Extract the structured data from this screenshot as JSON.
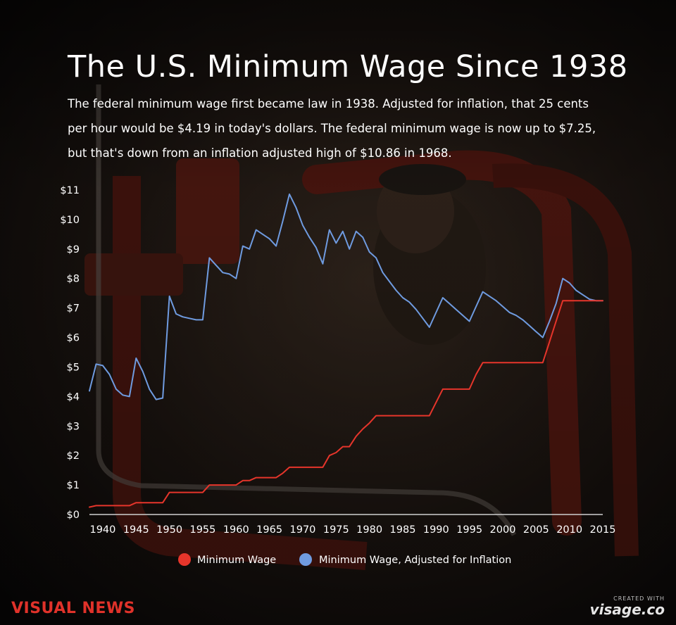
{
  "header": {
    "title": "The U.S. Minimum Wage Since 1938",
    "subtitle": "The federal minimum wage first became law in 1938. Adjusted for inflation, that 25 cents per hour would be $4.19 in today's dollars. The federal minimum wage is now up to $7.25, but that's down from an inflation adjusted high of $10.86 in 1968."
  },
  "footer": {
    "brand": "VISUAL NEWS",
    "credit_small": "CREATED WITH",
    "credit_main": "visage.co"
  },
  "colors": {
    "minimum_wage": "#e6352b",
    "adjusted": "#6f9be0",
    "brand": "#e0322a"
  },
  "chart_data": {
    "type": "line",
    "x_ticks": [
      "1940",
      "1945",
      "1950",
      "1955",
      "1960",
      "1965",
      "1970",
      "1975",
      "1980",
      "1985",
      "1990",
      "1995",
      "2000",
      "2005",
      "2010",
      "2015"
    ],
    "y_ticks": [
      "$0",
      "$1",
      "$2",
      "$3",
      "$4",
      "$5",
      "$6",
      "$7",
      "$8",
      "$9",
      "$10",
      "$11"
    ],
    "xlim": [
      1938,
      2015
    ],
    "ylim": [
      0,
      11
    ],
    "grid": false,
    "legend_position": "bottom",
    "series": [
      {
        "name": "Minimum Wage",
        "color": "#e6352b",
        "points": [
          [
            1938,
            0.25
          ],
          [
            1939,
            0.3
          ],
          [
            1944,
            0.3
          ],
          [
            1945,
            0.4
          ],
          [
            1949,
            0.4
          ],
          [
            1950,
            0.75
          ],
          [
            1955,
            0.75
          ],
          [
            1956,
            1.0
          ],
          [
            1960,
            1.0
          ],
          [
            1961,
            1.15
          ],
          [
            1962,
            1.15
          ],
          [
            1963,
            1.25
          ],
          [
            1966,
            1.25
          ],
          [
            1967,
            1.4
          ],
          [
            1968,
            1.6
          ],
          [
            1973,
            1.6
          ],
          [
            1974,
            2.0
          ],
          [
            1975,
            2.1
          ],
          [
            1976,
            2.3
          ],
          [
            1977,
            2.3
          ],
          [
            1978,
            2.65
          ],
          [
            1979,
            2.9
          ],
          [
            1980,
            3.1
          ],
          [
            1981,
            3.35
          ],
          [
            1989,
            3.35
          ],
          [
            1990,
            3.8
          ],
          [
            1991,
            4.25
          ],
          [
            1995,
            4.25
          ],
          [
            1996,
            4.75
          ],
          [
            1997,
            5.15
          ],
          [
            2006,
            5.15
          ],
          [
            2007,
            5.85
          ],
          [
            2008,
            6.55
          ],
          [
            2009,
            7.25
          ],
          [
            2015,
            7.25
          ]
        ]
      },
      {
        "name": "Minimum Wage, Adjusted for Inflation",
        "color": "#6f9be0",
        "points": [
          [
            1938,
            4.19
          ],
          [
            1939,
            5.1
          ],
          [
            1940,
            5.05
          ],
          [
            1941,
            4.75
          ],
          [
            1942,
            4.25
          ],
          [
            1943,
            4.05
          ],
          [
            1944,
            4.0
          ],
          [
            1945,
            5.3
          ],
          [
            1946,
            4.85
          ],
          [
            1947,
            4.25
          ],
          [
            1948,
            3.9
          ],
          [
            1949,
            3.95
          ],
          [
            1950,
            7.4
          ],
          [
            1951,
            6.8
          ],
          [
            1952,
            6.7
          ],
          [
            1953,
            6.65
          ],
          [
            1954,
            6.6
          ],
          [
            1955,
            6.6
          ],
          [
            1956,
            8.7
          ],
          [
            1957,
            8.45
          ],
          [
            1958,
            8.2
          ],
          [
            1959,
            8.15
          ],
          [
            1960,
            8.0
          ],
          [
            1961,
            9.1
          ],
          [
            1962,
            9.0
          ],
          [
            1963,
            9.65
          ],
          [
            1964,
            9.5
          ],
          [
            1965,
            9.35
          ],
          [
            1966,
            9.1
          ],
          [
            1967,
            9.95
          ],
          [
            1968,
            10.86
          ],
          [
            1969,
            10.4
          ],
          [
            1970,
            9.8
          ],
          [
            1971,
            9.4
          ],
          [
            1972,
            9.05
          ],
          [
            1973,
            8.5
          ],
          [
            1974,
            9.65
          ],
          [
            1975,
            9.2
          ],
          [
            1976,
            9.6
          ],
          [
            1977,
            9.0
          ],
          [
            1978,
            9.6
          ],
          [
            1979,
            9.4
          ],
          [
            1980,
            8.9
          ],
          [
            1981,
            8.7
          ],
          [
            1982,
            8.2
          ],
          [
            1983,
            7.9
          ],
          [
            1984,
            7.6
          ],
          [
            1985,
            7.35
          ],
          [
            1986,
            7.2
          ],
          [
            1987,
            6.95
          ],
          [
            1988,
            6.65
          ],
          [
            1989,
            6.35
          ],
          [
            1990,
            6.85
          ],
          [
            1991,
            7.35
          ],
          [
            1992,
            7.15
          ],
          [
            1993,
            6.95
          ],
          [
            1994,
            6.75
          ],
          [
            1995,
            6.55
          ],
          [
            1996,
            7.05
          ],
          [
            1997,
            7.55
          ],
          [
            1998,
            7.4
          ],
          [
            1999,
            7.25
          ],
          [
            2000,
            7.05
          ],
          [
            2001,
            6.85
          ],
          [
            2002,
            6.75
          ],
          [
            2003,
            6.6
          ],
          [
            2004,
            6.4
          ],
          [
            2005,
            6.2
          ],
          [
            2006,
            6.0
          ],
          [
            2007,
            6.55
          ],
          [
            2008,
            7.15
          ],
          [
            2009,
            8.0
          ],
          [
            2010,
            7.85
          ],
          [
            2011,
            7.6
          ],
          [
            2012,
            7.45
          ],
          [
            2013,
            7.3
          ],
          [
            2014,
            7.25
          ],
          [
            2015,
            7.25
          ]
        ]
      }
    ]
  }
}
